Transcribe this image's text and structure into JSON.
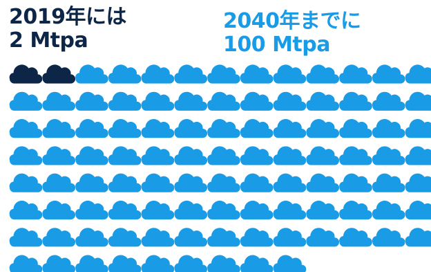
{
  "headings": {
    "current": {
      "line1": "2019年には",
      "line2": "2 Mtpa"
    },
    "target": {
      "line1": "2040年までに",
      "line2": "100 Mtpa"
    }
  },
  "chart_data": {
    "type": "pictogram",
    "icon": "cloud-icon",
    "total_icons": 100,
    "columns": 13,
    "series": [
      {
        "name": "2019年には",
        "value": 2,
        "unit": "Mtpa",
        "color": "#0d2546"
      },
      {
        "name": "2040年までに",
        "value": 100,
        "unit": "Mtpa",
        "color": "#1a9be6"
      }
    ]
  },
  "colors": {
    "dark": "#0d2546",
    "light": "#1a9be6"
  }
}
